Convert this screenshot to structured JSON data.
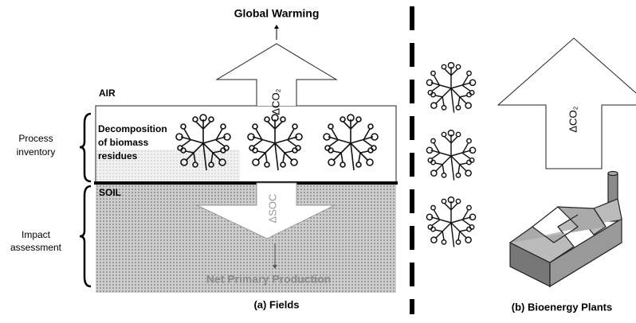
{
  "title_top": "Global Warming",
  "air": "AIR",
  "soil": "SOIL",
  "decomposition": [
    "Decomposition",
    "of biomass",
    "residues"
  ],
  "delta_co2_fields": "ΔCO₂",
  "delta_soc": "ΔSOC",
  "net_primary_production": "Net Primary Production",
  "process_inventory": [
    "Process",
    "inventory"
  ],
  "impact_assessment": [
    "Impact",
    "assessment"
  ],
  "caption_a": "(a) Fields",
  "caption_b": "(b) Bioenergy Plants",
  "delta_co2_plants": "ΔCO₂"
}
